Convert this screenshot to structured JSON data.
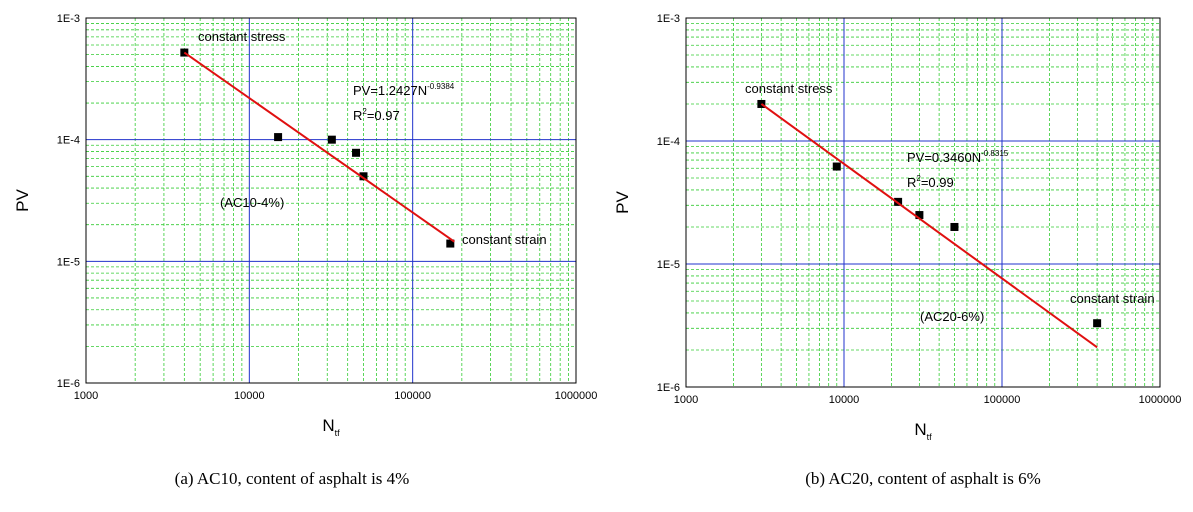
{
  "chart_data": [
    {
      "type": "scatter",
      "log_x": true,
      "log_y": true,
      "grid": true,
      "minor_grid": true,
      "xlim": [
        1000,
        1000000
      ],
      "ylim": [
        1e-06,
        0.001
      ],
      "xticks": [
        1000,
        10000,
        100000,
        1000000
      ],
      "yticks": [
        {
          "value": 1e-06,
          "label": "1E-6"
        },
        {
          "value": 1e-05,
          "label": "1E-5"
        },
        {
          "value": 0.0001,
          "label": "1E-4"
        },
        {
          "value": 0.001,
          "label": "1E-3"
        }
      ],
      "y_label": "PV",
      "x_label": "N",
      "x_label_subscript": "tf",
      "series": [
        {
          "type": "scatter",
          "color": "#000000",
          "x": [
            4000,
            15000,
            32000,
            45000,
            50000,
            170000
          ],
          "values": [
            0.00052,
            0.000105,
            0.0001,
            7.8e-05,
            5e-05,
            1.4e-05
          ]
        },
        {
          "type": "line",
          "color": "#e01010",
          "x": [
            4000,
            180000
          ],
          "values": [
            0.00052,
            1.45e-05
          ]
        }
      ],
      "annotations": [
        "constant stress",
        "constant strain",
        "(AC10-4%)"
      ],
      "equation": {
        "text": "PV=1.2427N",
        "sup": "-0.9384"
      },
      "r2": {
        "text": "R",
        "sup": "2",
        "rest": "=0.97"
      },
      "caption": "(a) AC10, content of asphalt is 4%"
    },
    {
      "type": "scatter",
      "log_x": true,
      "log_y": true,
      "grid": true,
      "minor_grid": true,
      "xlim": [
        1000,
        1000000
      ],
      "ylim": [
        1e-06,
        0.001
      ],
      "xticks": [
        1000,
        10000,
        100000,
        1000000
      ],
      "yticks": [
        {
          "value": 1e-06,
          "label": "1E-6"
        },
        {
          "value": 1e-05,
          "label": "1E-5"
        },
        {
          "value": 0.0001,
          "label": "1E-4"
        },
        {
          "value": 0.001,
          "label": "1E-3"
        }
      ],
      "y_label": "PV",
      "x_label": "N",
      "x_label_subscript": "tf",
      "series": [
        {
          "type": "scatter",
          "color": "#000000",
          "x": [
            3000,
            9000,
            22000,
            30000,
            50000,
            400000
          ],
          "values": [
            0.0002,
            6.2e-05,
            3.2e-05,
            2.5e-05,
            2e-05,
            3.3e-06
          ]
        },
        {
          "type": "line",
          "color": "#e01010",
          "x": [
            3000,
            400000
          ],
          "values": [
            0.0002,
            2.1e-06
          ]
        }
      ],
      "annotations": [
        "constant stress",
        "constant strain",
        "(AC20-6%)"
      ],
      "equation": {
        "text": "PV=0.3460N",
        "sup": "-0.8315"
      },
      "r2": {
        "text": "R",
        "sup": "2",
        "rest": "=0.99"
      },
      "caption": "(b) AC20, content of asphalt is 6%"
    }
  ]
}
